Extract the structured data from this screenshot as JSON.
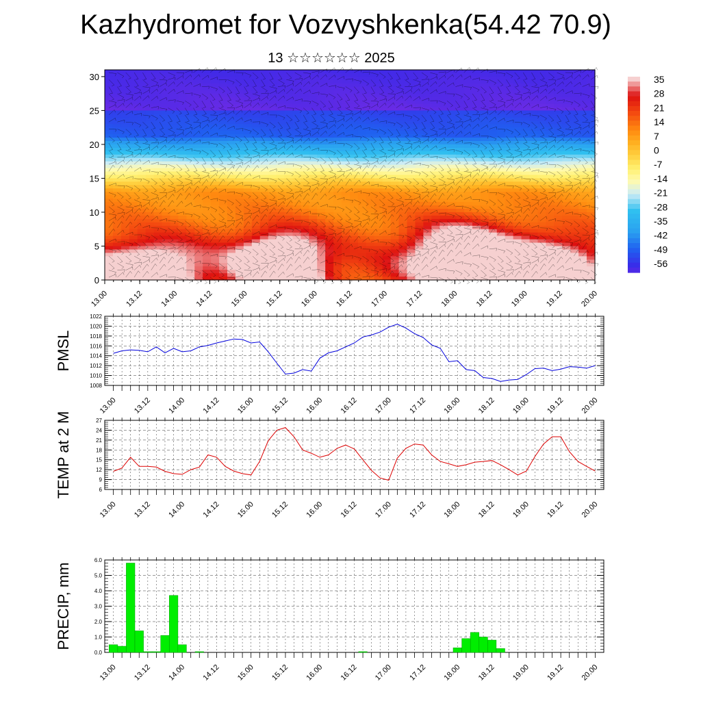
{
  "header": {
    "title": "Kazhydromet for Vozvyshkenka(54.42 70.9)",
    "subtitle": "13 ☆☆☆☆☆☆ 2025"
  },
  "chart_data": [
    {
      "type": "heatmap",
      "title": "",
      "ylabel": "",
      "yticks": [
        0,
        5,
        10,
        15,
        20,
        25,
        30
      ],
      "ylim": [
        0,
        31
      ],
      "xticks": [
        "13.00",
        "13.12",
        "14.00",
        "14.12",
        "15.00",
        "15.12",
        "16.00",
        "16.12",
        "17.00",
        "17.12",
        "18.00",
        "18.12",
        "19.00",
        "19.12",
        "20.00"
      ],
      "colorbar": {
        "labels": [
          "35",
          "28",
          "21",
          "14",
          "7",
          "0",
          "-7",
          "-14",
          "-21",
          "-28",
          "-35",
          "-42",
          "-49",
          "-56"
        ],
        "colors": [
          "#f6d0d0",
          "#dd1010",
          "#f44a10",
          "#ff8a10",
          "#ffb020",
          "#ffd040",
          "#fff070",
          "#fffab0",
          "#ccecf6",
          "#30c0f0",
          "#2aa0f0",
          "#2060f0",
          "#3a2ae8",
          "#8a2be2"
        ]
      },
      "overlay": "wind barbs",
      "grid": false
    },
    {
      "type": "line",
      "ylabel": "PMSL",
      "ylim": [
        1008,
        1022
      ],
      "yticks": [
        1008,
        1010,
        1012,
        1014,
        1016,
        1018,
        1020,
        1022
      ],
      "line_color": "#0000dd",
      "grid": true,
      "x": [
        0,
        1,
        2,
        3,
        4,
        5,
        6,
        7,
        8,
        9,
        10,
        11,
        12,
        13,
        14,
        15,
        16,
        17,
        18,
        19,
        20,
        21,
        22,
        23,
        24,
        25,
        26,
        27,
        28,
        29,
        30,
        31,
        32,
        33,
        34,
        35,
        36,
        37,
        38,
        39,
        40,
        41,
        42,
        43,
        44,
        45,
        46,
        47,
        48,
        49,
        50,
        51,
        52,
        53,
        54,
        55,
        56
      ],
      "values": [
        1014.5,
        1015.0,
        1015.2,
        1015.1,
        1014.8,
        1015.8,
        1014.6,
        1015.5,
        1014.8,
        1015.0,
        1015.8,
        1016.1,
        1016.6,
        1017.0,
        1017.4,
        1017.3,
        1016.6,
        1016.8,
        1014.8,
        1012.5,
        1010.3,
        1010.5,
        1011.2,
        1010.9,
        1013.5,
        1014.6,
        1015.0,
        1015.8,
        1016.6,
        1017.8,
        1018.2,
        1018.8,
        1019.8,
        1020.4,
        1019.6,
        1018.5,
        1017.7,
        1016.2,
        1015.5,
        1012.8,
        1013.0,
        1011.2,
        1011.0,
        1009.6,
        1009.4,
        1008.8,
        1009.1,
        1009.2,
        1010.2,
        1011.4,
        1011.5,
        1011.0,
        1011.3,
        1011.8,
        1011.7,
        1011.5,
        1012.0
      ],
      "xticks": [
        "13.00",
        "13.12",
        "14.00",
        "14.12",
        "15.00",
        "15.12",
        "16.00",
        "16.12",
        "17.00",
        "17.12",
        "18.00",
        "18.12",
        "19.00",
        "19.12",
        "20.00"
      ]
    },
    {
      "type": "line",
      "ylabel": "TEMP at 2 M",
      "ylim": [
        6,
        27
      ],
      "yticks": [
        6,
        9,
        12,
        15,
        18,
        21,
        24,
        27
      ],
      "line_color": "#dd0000",
      "grid": true,
      "x": [
        0,
        1,
        2,
        3,
        4,
        5,
        6,
        7,
        8,
        9,
        10,
        11,
        12,
        13,
        14,
        15,
        16,
        17,
        18,
        19,
        20,
        21,
        22,
        23,
        24,
        25,
        26,
        27,
        28,
        29,
        30,
        31,
        32,
        33,
        34,
        35,
        36,
        37,
        38,
        39,
        40,
        41,
        42,
        43,
        44,
        45,
        46,
        47,
        48,
        49,
        50,
        51,
        52,
        53,
        54,
        55,
        56
      ],
      "values": [
        11.5,
        12.5,
        15.8,
        13.0,
        13.0,
        12.8,
        11.5,
        10.8,
        10.6,
        12.0,
        12.8,
        16.5,
        15.8,
        13.0,
        11.6,
        10.8,
        10.4,
        14.5,
        20.8,
        24.0,
        24.8,
        22.0,
        18.0,
        17.0,
        15.8,
        16.5,
        18.5,
        19.5,
        18.3,
        15.0,
        11.8,
        9.5,
        8.8,
        15.5,
        18.5,
        19.8,
        19.5,
        16.5,
        14.5,
        13.8,
        13.0,
        13.5,
        14.3,
        14.5,
        14.8,
        13.5,
        12.0,
        10.4,
        11.6,
        16.0,
        19.8,
        22.0,
        22.0,
        17.5,
        14.5,
        13.0,
        11.6
      ],
      "xticks": [
        "13.00",
        "13.12",
        "14.00",
        "14.12",
        "15.00",
        "15.12",
        "16.00",
        "16.12",
        "17.00",
        "17.12",
        "18.00",
        "18.12",
        "19.00",
        "19.12",
        "20.00"
      ]
    },
    {
      "type": "bar",
      "ylabel": "PRECIP, mm",
      "ylim": [
        0,
        6
      ],
      "yticks": [
        "0.0",
        "1.0",
        "2.0",
        "3.0",
        "4.0",
        "5.0",
        "6.0"
      ],
      "bar_color": "#00ee00",
      "grid": true,
      "x": [
        0,
        1,
        2,
        3,
        4,
        5,
        6,
        7,
        8,
        9,
        10,
        11,
        12,
        13,
        14,
        15,
        16,
        17,
        18,
        19,
        20,
        21,
        22,
        23,
        24,
        25,
        26,
        27,
        28,
        29,
        30,
        31,
        32,
        33,
        34,
        35,
        36,
        37,
        38,
        39,
        40,
        41,
        42,
        43,
        44,
        45,
        46,
        47,
        48,
        49,
        50,
        51,
        52,
        53,
        54,
        55,
        56
      ],
      "values": [
        0.5,
        0.4,
        5.8,
        1.4,
        0.05,
        0.05,
        1.1,
        3.7,
        0.5,
        0,
        0.05,
        0,
        0,
        0,
        0,
        0,
        0,
        0,
        0,
        0,
        0,
        0,
        0,
        0,
        0,
        0,
        0,
        0,
        0,
        0.05,
        0,
        0,
        0,
        0,
        0,
        0,
        0,
        0,
        0,
        0,
        0.3,
        0.9,
        1.3,
        1.0,
        0.8,
        0.25,
        0,
        0,
        0,
        0,
        0,
        0,
        0,
        0,
        0,
        0,
        0
      ],
      "xticks": [
        "13.00",
        "13.12",
        "14.00",
        "14.12",
        "15.00",
        "15.12",
        "16.00",
        "16.12",
        "17.00",
        "17.12",
        "18.00",
        "18.12",
        "19.00",
        "19.12",
        "20.00"
      ]
    }
  ]
}
